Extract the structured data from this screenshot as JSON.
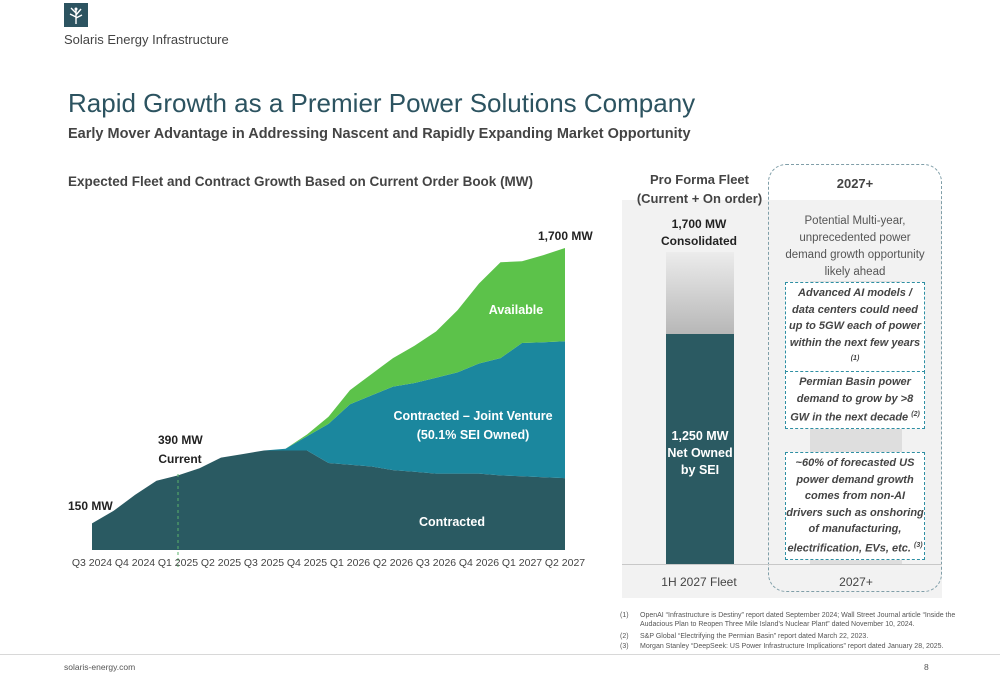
{
  "header": {
    "company": "Solaris Energy Infrastructure",
    "title": "Rapid Growth as a Premier Power Solutions Company",
    "subtitle": "Early Mover Advantage in Addressing Nascent and Rapidly Expanding Market Opportunity"
  },
  "left_chart": {
    "title": "Expected Fleet and Contract Growth Based on Current Order Book (MW)",
    "label_150": "150 MW",
    "label_390_a": "390 MW",
    "label_390_b": "Current",
    "label_1700": "1,700 MW",
    "series_available": "Available",
    "series_jv_a": "Contracted – Joint Venture",
    "series_jv_b": "(50.1% SEI Owned)",
    "series_contracted": "Contracted"
  },
  "chart_data": {
    "type": "area",
    "stacked": true,
    "categories": [
      "Q3 2024",
      "Q4 2024",
      "Q1 2025",
      "Q2 2025",
      "Q3 2025",
      "Q4 2025",
      "Q1 2026",
      "Q2 2026",
      "Q3 2026",
      "Q4 2026",
      "Q1 2027",
      "Q2 2027"
    ],
    "x": [
      0,
      0.5,
      1,
      1.5,
      2,
      2.5,
      3,
      3.5,
      4,
      4.5,
      5,
      5.5,
      6,
      6.5,
      7,
      7.5,
      8,
      8.5,
      9,
      9.5,
      10,
      10.5,
      11
    ],
    "series": [
      {
        "name": "Contracted",
        "values": [
          150,
          220,
          310,
          390,
          420,
          460,
          520,
          540,
          560,
          560,
          560,
          490,
          480,
          470,
          450,
          440,
          430,
          430,
          430,
          420,
          415,
          410,
          405
        ]
      },
      {
        "name": "Contracted – Joint Venture",
        "values": [
          0,
          0,
          0,
          0,
          0,
          0,
          0,
          0,
          0,
          10,
          80,
          220,
          340,
          400,
          470,
          500,
          540,
          570,
          620,
          660,
          750,
          760,
          770
        ]
      },
      {
        "name": "Available",
        "values": [
          0,
          0,
          0,
          0,
          0,
          0,
          0,
          0,
          0,
          0,
          10,
          40,
          80,
          120,
          160,
          210,
          260,
          350,
          450,
          540,
          460,
          490,
          525
        ]
      }
    ],
    "ylim": [
      0,
      1700
    ],
    "current_marker": "Q1 2025",
    "annotations": [
      "150 MW",
      "390 MW Current",
      "1,700 MW"
    ]
  },
  "right_panel": {
    "fleet_title_a": "Pro Forma Fleet",
    "fleet_title_b": "(Current + On order)",
    "bar_top_a": "1,700 MW",
    "bar_top_b": "Consolidated",
    "bar_main_a": "1,250 MW",
    "bar_main_b": "Net Owned",
    "bar_main_c": "by SEI",
    "axis_fleet": "1H 2027 Fleet",
    "axis_2027": "2027+",
    "year_title": "2027+",
    "potential": "Potential Multi-year, unprecedented power demand growth opportunity likely ahead",
    "box1": "Advanced AI models / data centers could need up to 5GW each of power within the next few years",
    "box1_ref": "(1)",
    "box2": "Permian Basin power demand to grow by >8 GW in the next decade",
    "box2_ref": "(2)",
    "box3": "~60% of forecasted US power demand growth comes from non-AI drivers such as onshoring of manufacturing, electrification, EVs, etc.",
    "box3_ref": "(3)",
    "colors": {
      "contracted": "#2a5a62",
      "jv": "#1b879e",
      "available": "#5cc24a",
      "dash": "#2e8fa3"
    }
  },
  "footnotes": [
    {
      "num": "(1)",
      "text": "OpenAI “Infrastructure is Destiny” report dated September 2024; Wall Street Journal article “Inside the Audacious Plan to Reopen Three Mile Island’s Nuclear Plant” dated November 10, 2024."
    },
    {
      "num": "(2)",
      "text": "S&P Global “Electrifying the Permian Basin” report dated March 22, 2023."
    },
    {
      "num": "(3)",
      "text": "Morgan Stanley “DeepSeek: US Power Infrastructure Implications” report dated January 28, 2025."
    }
  ],
  "footer": {
    "site": "solaris-energy.com",
    "page": "8"
  }
}
